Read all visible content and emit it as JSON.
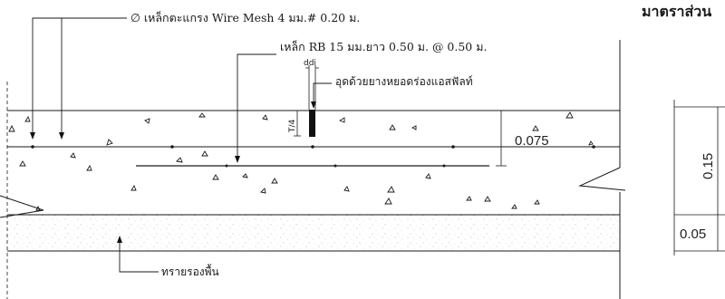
{
  "title_partial": "มาตราส่วน",
  "labels": {
    "wire_mesh": "∅ เหล็กตะแกรง Wire  Mesh 4 มม.# 0.20 ม.",
    "dowel_bar": "เหล็ก RB 15 มม.ยาว 0.50 ม. @  0.50 ม.",
    "joint_sealant": "อุดด้วยยางหยอดร่องแอสฟัลท์",
    "sand_base": "ทรายรองพื้น",
    "joint_width": "ddi",
    "joint_depth": "T/4",
    "slab_mid_thickness": "0.075",
    "slab_thickness": "0.15",
    "sand_thickness": "0.05"
  }
}
